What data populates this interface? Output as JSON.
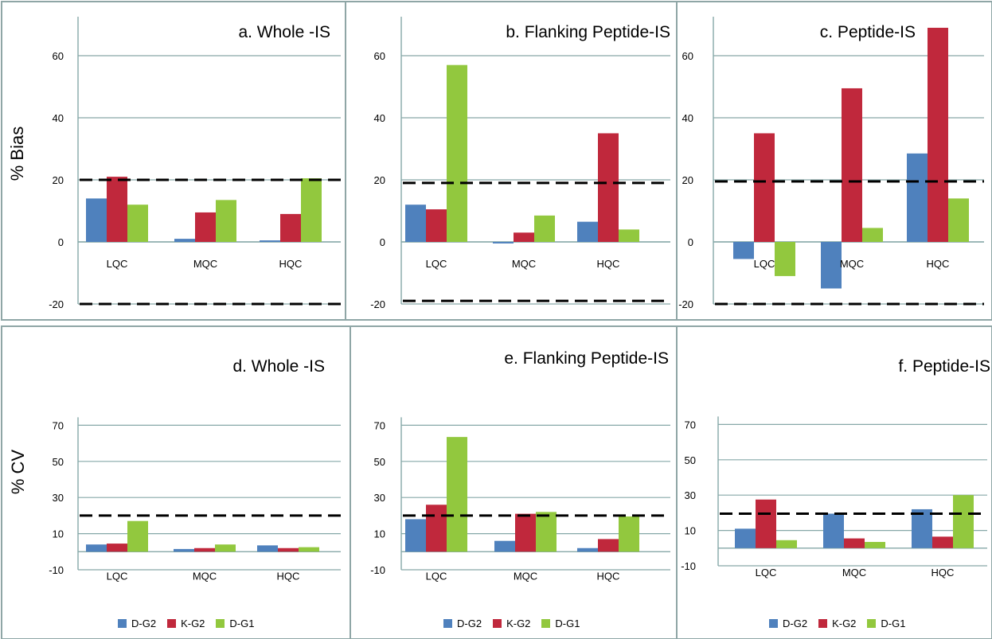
{
  "figure": {
    "ylabel_top": "% Bias",
    "ylabel_bottom": "% CV"
  },
  "legend": [
    {
      "name": "D-G2",
      "color": "#4f81bd"
    },
    {
      "name": "K-G2",
      "color": "#c0283c"
    },
    {
      "name": "D-G1",
      "color": "#92c83e"
    }
  ],
  "chart_data": [
    {
      "type": "bar",
      "title": "a. Whole -IS",
      "categories": [
        "LQC",
        "MQC",
        "HQC"
      ],
      "series": [
        {
          "name": "D-G2",
          "values": [
            14,
            1,
            0.5
          ]
        },
        {
          "name": "K-G2",
          "values": [
            21,
            9.5,
            9
          ]
        },
        {
          "name": "D-G1",
          "values": [
            12,
            13.5,
            20.5
          ]
        }
      ],
      "yticks": [
        -20,
        0,
        20,
        40,
        60
      ],
      "ylim": [
        -20,
        70
      ],
      "reference_lines": [
        20,
        -20
      ]
    },
    {
      "type": "bar",
      "title": "b. Flanking Peptide-IS",
      "categories": [
        "LQC",
        "MQC",
        "HQC"
      ],
      "series": [
        {
          "name": "D-G2",
          "values": [
            12,
            -0.5,
            6.5
          ]
        },
        {
          "name": "K-G2",
          "values": [
            10.5,
            3,
            35
          ]
        },
        {
          "name": "D-G1",
          "values": [
            57,
            8.5,
            4
          ]
        }
      ],
      "yticks": [
        -20,
        0,
        20,
        40,
        60
      ],
      "ylim": [
        -20,
        70
      ],
      "reference_lines": [
        19,
        -19
      ]
    },
    {
      "type": "bar",
      "title": "c. Peptide-IS",
      "categories": [
        "LQC",
        "MQC",
        "HQC"
      ],
      "series": [
        {
          "name": "D-G2",
          "values": [
            -5.5,
            -15,
            28.5
          ]
        },
        {
          "name": "K-G2",
          "values": [
            35,
            49.5,
            69
          ]
        },
        {
          "name": "D-G1",
          "values": [
            -11,
            4.5,
            14
          ]
        }
      ],
      "yticks": [
        -20,
        0,
        20,
        40,
        60
      ],
      "ylim": [
        -20,
        70
      ],
      "reference_lines": [
        19.5,
        -20
      ]
    },
    {
      "type": "bar",
      "title": "d. Whole -IS",
      "categories": [
        "LQC",
        "MQC",
        "HQC"
      ],
      "series": [
        {
          "name": "D-G2",
          "values": [
            4,
            1.5,
            3.5
          ]
        },
        {
          "name": "K-G2",
          "values": [
            4.5,
            2,
            2
          ]
        },
        {
          "name": "D-G1",
          "values": [
            17,
            4,
            2.5
          ]
        }
      ],
      "yticks": [
        -10,
        10,
        30,
        50,
        70
      ],
      "ylim": [
        -10,
        70
      ],
      "reference_lines": [
        20
      ]
    },
    {
      "type": "bar",
      "title": "e. Flanking Peptide-IS",
      "categories": [
        "LQC",
        "MQC",
        "HQC"
      ],
      "series": [
        {
          "name": "D-G2",
          "values": [
            18,
            6,
            2
          ]
        },
        {
          "name": "K-G2",
          "values": [
            26,
            21,
            7
          ]
        },
        {
          "name": "D-G1",
          "values": [
            63.5,
            22,
            19.5
          ]
        }
      ],
      "yticks": [
        -10,
        10,
        30,
        50,
        70
      ],
      "ylim": [
        -10,
        70
      ],
      "reference_lines": [
        20
      ]
    },
    {
      "type": "bar",
      "title": "f. Peptide-IS",
      "categories": [
        "LQC",
        "MQC",
        "HQC"
      ],
      "series": [
        {
          "name": "D-G2",
          "values": [
            11,
            19.5,
            22
          ]
        },
        {
          "name": "K-G2",
          "values": [
            27.5,
            5.5,
            6.5
          ]
        },
        {
          "name": "D-G1",
          "values": [
            4.5,
            3.5,
            30
          ]
        }
      ],
      "yticks": [
        -10,
        10,
        30,
        50,
        70
      ],
      "ylim": [
        -10,
        70
      ],
      "reference_lines": [
        19.5
      ]
    }
  ]
}
